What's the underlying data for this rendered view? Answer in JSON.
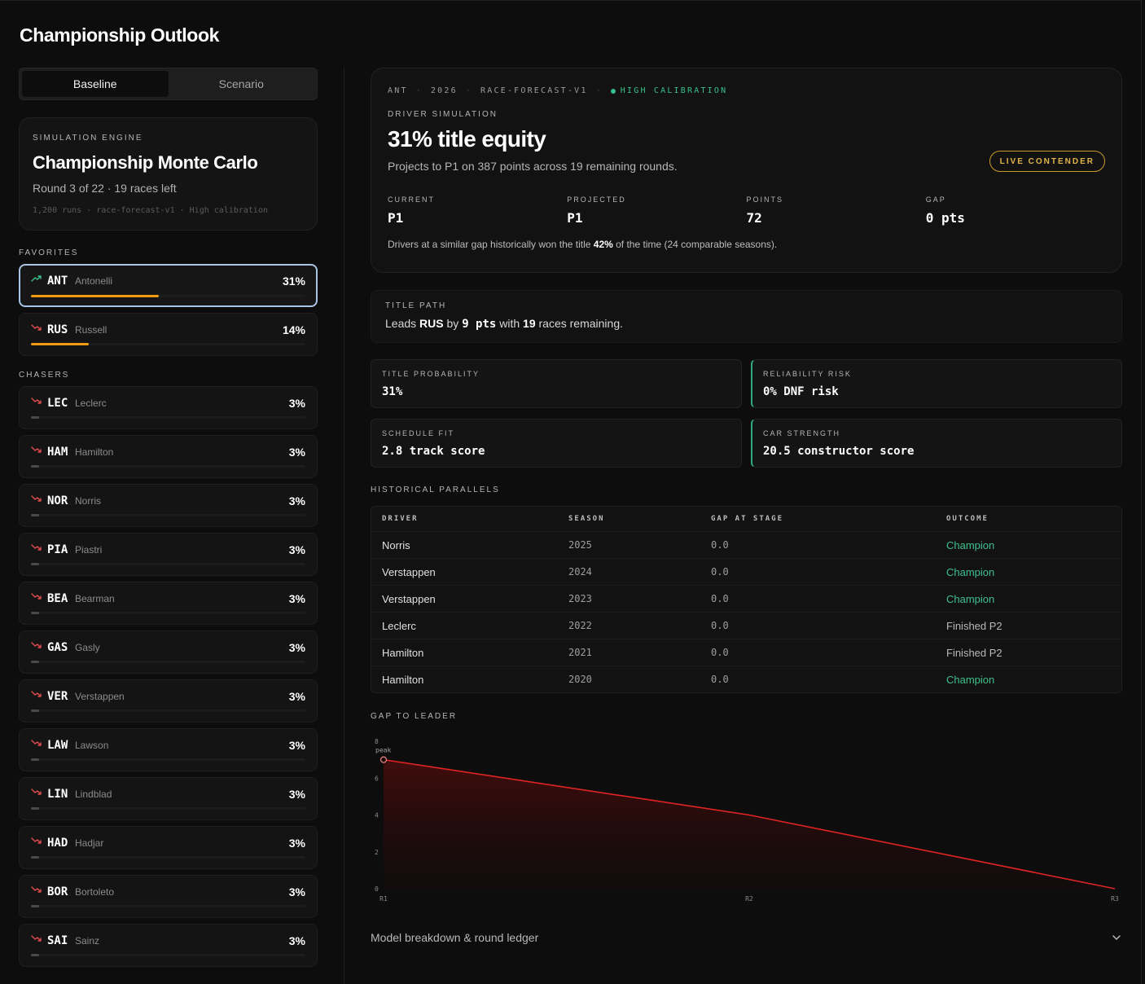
{
  "page": {
    "title": "Championship Outlook"
  },
  "mode_toggle": {
    "baseline": "Baseline",
    "scenario": "Scenario"
  },
  "engine": {
    "label": "SIMULATION ENGINE",
    "title": "Championship Monte Carlo",
    "subtitle": "Round 3 of 22 · 19 races left",
    "meta": "1,200 runs · race-forecast-v1 · High calibration"
  },
  "favorites_label": "FAVORITES",
  "chasers_label": "CHASERS",
  "favorites": [
    {
      "code": "ANT",
      "name": "Antonelli",
      "pct": "31%",
      "share": 0.31,
      "trend": "up"
    },
    {
      "code": "RUS",
      "name": "Russell",
      "pct": "14%",
      "share": 0.14,
      "trend": "down"
    }
  ],
  "chasers": [
    {
      "code": "LEC",
      "name": "Leclerc",
      "pct": "3%"
    },
    {
      "code": "HAM",
      "name": "Hamilton",
      "pct": "3%"
    },
    {
      "code": "NOR",
      "name": "Norris",
      "pct": "3%"
    },
    {
      "code": "PIA",
      "name": "Piastri",
      "pct": "3%"
    },
    {
      "code": "BEA",
      "name": "Bearman",
      "pct": "3%"
    },
    {
      "code": "GAS",
      "name": "Gasly",
      "pct": "3%"
    },
    {
      "code": "VER",
      "name": "Verstappen",
      "pct": "3%"
    },
    {
      "code": "LAW",
      "name": "Lawson",
      "pct": "3%"
    },
    {
      "code": "LIN",
      "name": "Lindblad",
      "pct": "3%"
    },
    {
      "code": "HAD",
      "name": "Hadjar",
      "pct": "3%"
    },
    {
      "code": "BOR",
      "name": "Bortoleto",
      "pct": "3%"
    },
    {
      "code": "SAI",
      "name": "Sainz",
      "pct": "3%"
    }
  ],
  "hero": {
    "meta": [
      "ANT",
      "2026",
      "RACE-FORECAST-V1"
    ],
    "calibration": "HIGH CALIBRATION",
    "label": "DRIVER SIMULATION",
    "title": "31% title equity",
    "subtitle": "Projects to P1 on 387 points across 19 remaining rounds.",
    "badge": "LIVE CONTENDER",
    "stats": [
      {
        "label": "CURRENT",
        "value": "P1"
      },
      {
        "label": "PROJECTED",
        "value": "P1"
      },
      {
        "label": "POINTS",
        "value": "72"
      },
      {
        "label": "GAP",
        "value": "0 pts"
      }
    ],
    "note_pre": "Drivers at a similar gap historically won the title ",
    "note_pct": "42%",
    "note_post": " of the time (24 comparable seasons)."
  },
  "title_path": {
    "label": "TITLE PATH",
    "t1": "Leads ",
    "leader": "RUS",
    "t2": " by ",
    "pts_num": "9",
    "pts_unit": " pts",
    "t3": " with ",
    "races": "19",
    "t4": " races remaining."
  },
  "tiles": [
    {
      "label": "TITLE PROBABILITY",
      "value": "31%"
    },
    {
      "label": "RELIABILITY RISK",
      "value": "0% DNF risk"
    },
    {
      "label": "SCHEDULE FIT",
      "value": "2.8 track score"
    },
    {
      "label": "CAR STRENGTH",
      "value": "20.5 constructor score"
    }
  ],
  "historical": {
    "label": "HISTORICAL PARALLELS",
    "columns": [
      "DRIVER",
      "SEASON",
      "GAP AT STAGE",
      "OUTCOME"
    ],
    "rows": [
      {
        "driver": "Norris",
        "season": "2025",
        "gap": "0.0",
        "outcome": "Champion",
        "champion": true
      },
      {
        "driver": "Verstappen",
        "season": "2024",
        "gap": "0.0",
        "outcome": "Champion",
        "champion": true
      },
      {
        "driver": "Verstappen",
        "season": "2023",
        "gap": "0.0",
        "outcome": "Champion",
        "champion": true
      },
      {
        "driver": "Leclerc",
        "season": "2022",
        "gap": "0.0",
        "outcome": "Finished P2",
        "champion": false
      },
      {
        "driver": "Hamilton",
        "season": "2021",
        "gap": "0.0",
        "outcome": "Finished P2",
        "champion": false
      },
      {
        "driver": "Hamilton",
        "season": "2020",
        "gap": "0.0",
        "outcome": "Champion",
        "champion": true
      }
    ]
  },
  "gap_chart_label": "GAP TO LEADER",
  "chart_data": {
    "type": "area",
    "title": "",
    "categories": [
      "R1",
      "R2",
      "R3"
    ],
    "values": [
      7,
      4,
      0
    ],
    "ylim": [
      0,
      8
    ],
    "yticks": [
      0,
      2,
      4,
      6,
      8
    ],
    "annotation": "peak",
    "color": "#e02424"
  },
  "breakdown": {
    "label": "Model breakdown & round ledger"
  },
  "colors": {
    "accent_orange": "#f39c12",
    "green": "#3fc08e",
    "gold": "#e2b54a",
    "line_red": "#e02424"
  }
}
